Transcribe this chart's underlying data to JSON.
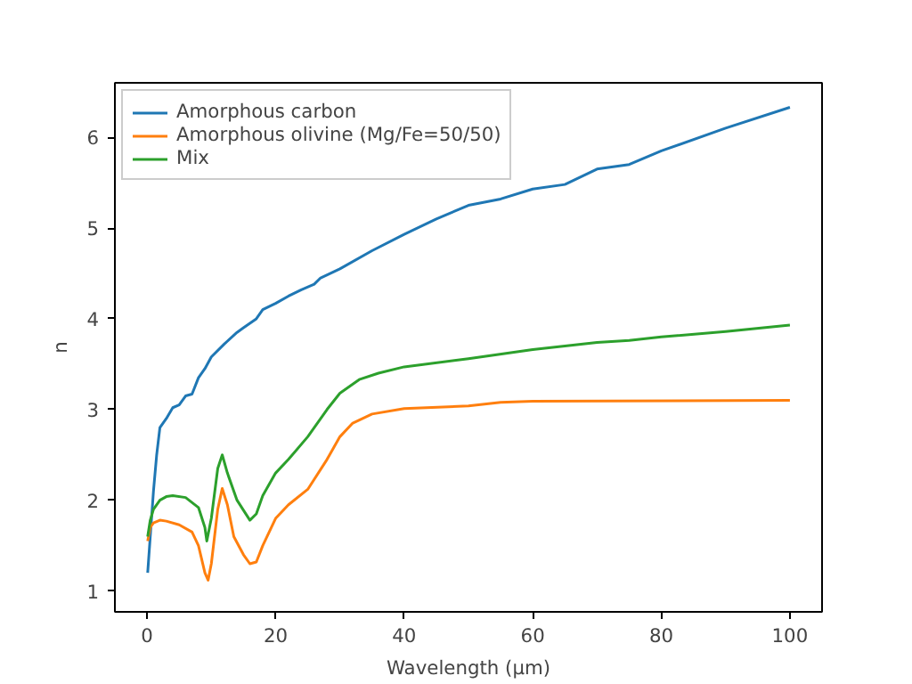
{
  "chart_data": {
    "type": "line",
    "xlabel": "Wavelength (µm)",
    "ylabel": "n",
    "xlim": [
      -5,
      105
    ],
    "ylim": [
      0.77,
      6.6
    ],
    "xticks": [
      0,
      20,
      40,
      60,
      80,
      100
    ],
    "yticks": [
      1,
      2,
      3,
      4,
      5,
      6
    ],
    "grid": false,
    "legend": "top left",
    "line_style": "solid",
    "marker": "none",
    "series": [
      {
        "name": "Amorphous carbon",
        "color": "#1f77b4",
        "x": [
          0.1,
          0.5,
          1,
          1.5,
          2,
          3,
          4,
          5,
          6,
          7,
          8,
          9,
          10,
          12,
          14,
          15,
          17,
          18,
          20,
          22,
          24,
          26,
          27,
          30,
          35,
          40,
          45,
          50,
          55,
          60,
          65,
          70,
          75,
          80,
          90,
          100
        ],
        "values": [
          1.2,
          1.6,
          2.1,
          2.5,
          2.8,
          2.9,
          3.02,
          3.05,
          3.15,
          3.17,
          3.35,
          3.45,
          3.58,
          3.72,
          3.85,
          3.9,
          4.0,
          4.1,
          4.17,
          4.25,
          4.32,
          4.38,
          4.45,
          4.55,
          4.75,
          4.93,
          5.1,
          5.25,
          5.32,
          5.43,
          5.48,
          5.65,
          5.7,
          5.85,
          6.1,
          6.33
        ]
      },
      {
        "name": "Amorphous olivine (Mg/Fe=50/50)",
        "color": "#ff7f0e",
        "x": [
          0.1,
          0.5,
          1,
          2,
          3,
          5,
          7,
          8,
          9,
          9.5,
          10,
          11,
          11.7,
          12.5,
          13.5,
          15,
          16,
          17,
          18,
          20,
          22,
          25,
          28,
          30,
          32,
          35,
          40,
          50,
          55,
          60,
          100
        ],
        "values": [
          1.55,
          1.7,
          1.75,
          1.78,
          1.77,
          1.73,
          1.65,
          1.5,
          1.2,
          1.12,
          1.3,
          1.9,
          2.13,
          1.95,
          1.6,
          1.4,
          1.3,
          1.32,
          1.5,
          1.8,
          1.95,
          2.12,
          2.45,
          2.7,
          2.85,
          2.95,
          3.01,
          3.04,
          3.08,
          3.09,
          3.1
        ]
      },
      {
        "name": "Mix",
        "color": "#2ca02c",
        "x": [
          0.1,
          0.5,
          1,
          2,
          3,
          4,
          6,
          8,
          9,
          9.3,
          10,
          11,
          11.7,
          12.5,
          14,
          16,
          17,
          18,
          20,
          22,
          25,
          28,
          30,
          33,
          36,
          40,
          50,
          60,
          70,
          75,
          80,
          90,
          100
        ],
        "values": [
          1.6,
          1.78,
          1.9,
          2.0,
          2.04,
          2.05,
          2.03,
          1.92,
          1.7,
          1.55,
          1.8,
          2.35,
          2.5,
          2.3,
          2.0,
          1.78,
          1.85,
          2.05,
          2.3,
          2.45,
          2.7,
          3.0,
          3.18,
          3.33,
          3.4,
          3.47,
          3.56,
          3.66,
          3.74,
          3.76,
          3.8,
          3.86,
          3.93
        ]
      }
    ]
  }
}
